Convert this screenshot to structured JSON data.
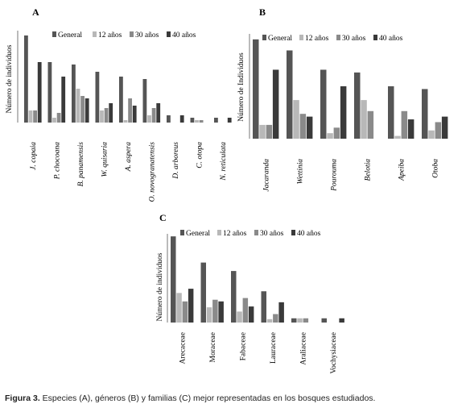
{
  "colors": {
    "General": "#555555",
    "12 años": "#b8b8b8",
    "30 años": "#8a8a8a",
    "40 años": "#3a3a3a"
  },
  "chart_data": [
    {
      "panel": "A",
      "type": "bar",
      "ylabel": "Número de individuos",
      "categories": [
        "J. copaia",
        "P. chocoana",
        "B. panamensis",
        "W. quisaria",
        "A. aspera",
        "O. novogranatensis",
        "D. arboreus",
        "C. otopa",
        "N. reticulata"
      ],
      "series": [
        {
          "name": "General",
          "values": [
            36,
            25,
            24,
            21,
            19,
            18,
            3,
            2,
            2
          ]
        },
        {
          "name": "12 años",
          "values": [
            5,
            2,
            14,
            5,
            1,
            3,
            0,
            1,
            0
          ]
        },
        {
          "name": "30 años",
          "values": [
            5,
            4,
            11,
            6,
            10,
            6,
            0,
            1,
            0
          ]
        },
        {
          "name": "40 años",
          "values": [
            25,
            19,
            10,
            8,
            7,
            8,
            3,
            0,
            2
          ]
        }
      ],
      "ylim": [
        0,
        38
      ]
    },
    {
      "panel": "B",
      "type": "bar",
      "ylabel": "Número de Individuos",
      "categories": [
        "Jacaranda",
        "Wettinia",
        "Pourouma",
        "Belotia",
        "Apeiba",
        "Otoba"
      ],
      "series": [
        {
          "name": "General",
          "values": [
            36,
            32,
            25,
            24,
            19,
            18
          ]
        },
        {
          "name": "12 años",
          "values": [
            5,
            14,
            2,
            14,
            1,
            3
          ]
        },
        {
          "name": "30 años",
          "values": [
            5,
            9,
            4,
            10,
            10,
            6
          ]
        },
        {
          "name": "40 años",
          "values": [
            25,
            8,
            19,
            0,
            7,
            8
          ]
        }
      ],
      "ylim": [
        0,
        38
      ]
    },
    {
      "panel": "C",
      "type": "bar",
      "ylabel": "Número de individuos",
      "categories": [
        "Arecaceae",
        "Moraceae",
        "Fabaceae",
        "Lauraceae",
        "Araliaceae",
        "Vochysiaceae"
      ],
      "series": [
        {
          "name": "General",
          "values": [
            102,
            71,
            61,
            37,
            5,
            5
          ]
        },
        {
          "name": "12 años",
          "values": [
            35,
            18,
            13,
            4,
            5,
            0
          ]
        },
        {
          "name": "30 años",
          "values": [
            25,
            27,
            29,
            10,
            5,
            0
          ]
        },
        {
          "name": "40 años",
          "values": [
            40,
            25,
            19,
            24,
            0,
            5
          ]
        }
      ],
      "ylim": [
        0,
        105
      ]
    }
  ],
  "caption": {
    "label": "Figura 3.",
    "text": " Especies (A), géneros (B) y familias (C) mejor representadas en los bosques estudiados."
  }
}
